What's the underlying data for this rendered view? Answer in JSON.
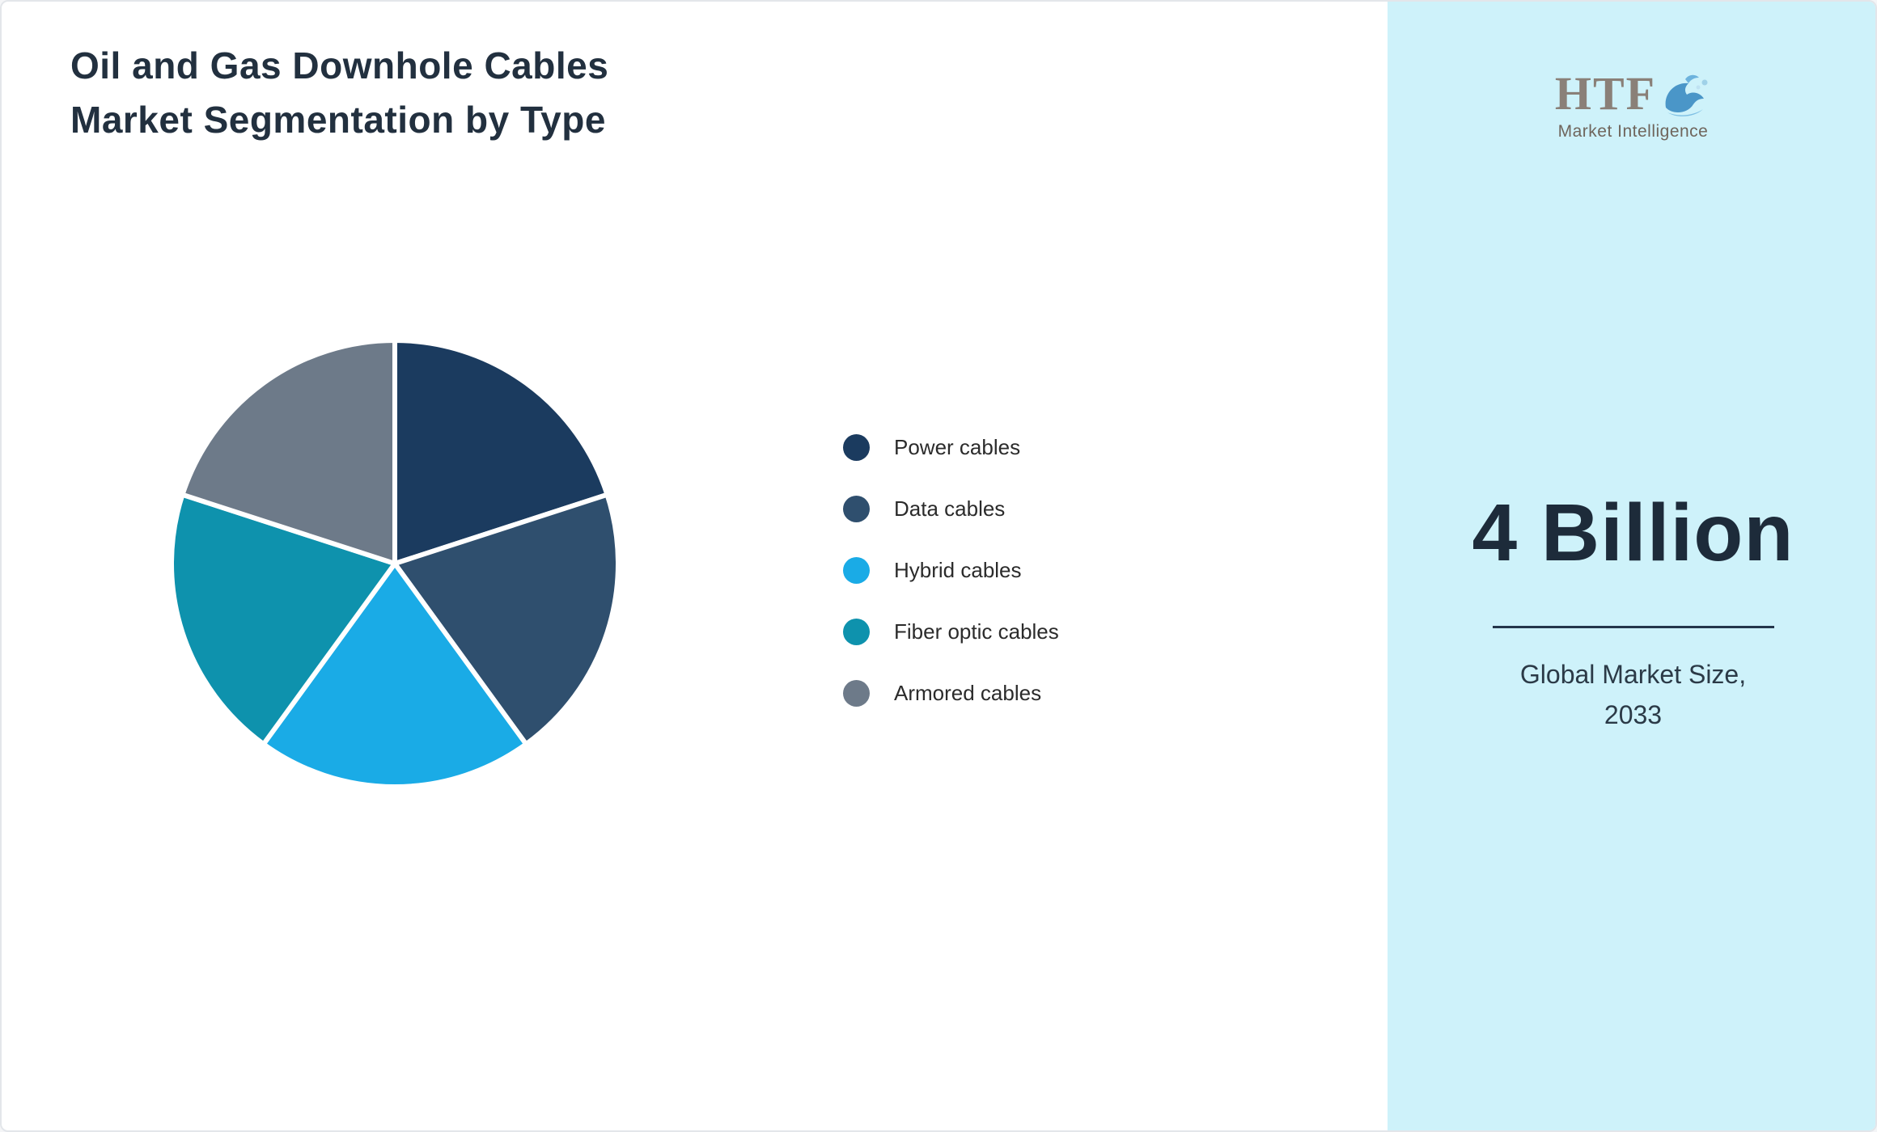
{
  "title": {
    "line1": "Oil and Gas Downhole Cables",
    "line2": "Market Segmentation by Type"
  },
  "chart_data": {
    "type": "pie",
    "title": "Oil and Gas Downhole Cables Market Segmentation by Type",
    "labels": [
      "Power cables",
      "Data cables",
      "Hybrid cables",
      "Fiber optic cables",
      "Armored cables"
    ],
    "values": [
      20,
      20,
      20,
      20,
      20
    ],
    "colors": [
      "#1b3b5f",
      "#2f4f6e",
      "#1aabe6",
      "#0e92ad",
      "#6d7a89"
    ],
    "start_angle_deg": 0,
    "direction": "clockwise",
    "legend_position": "right",
    "slice_gap_color": "#ffffff"
  },
  "sidebar": {
    "background_color": "#cef2fa",
    "logo": {
      "text": "HTF",
      "subtext": "Market Intelligence",
      "dolphin_icon_color": "#4a96c8"
    },
    "market_size_value": "4 Billion",
    "caption_line1": "Global Market Size,",
    "caption_line2": "2033"
  }
}
